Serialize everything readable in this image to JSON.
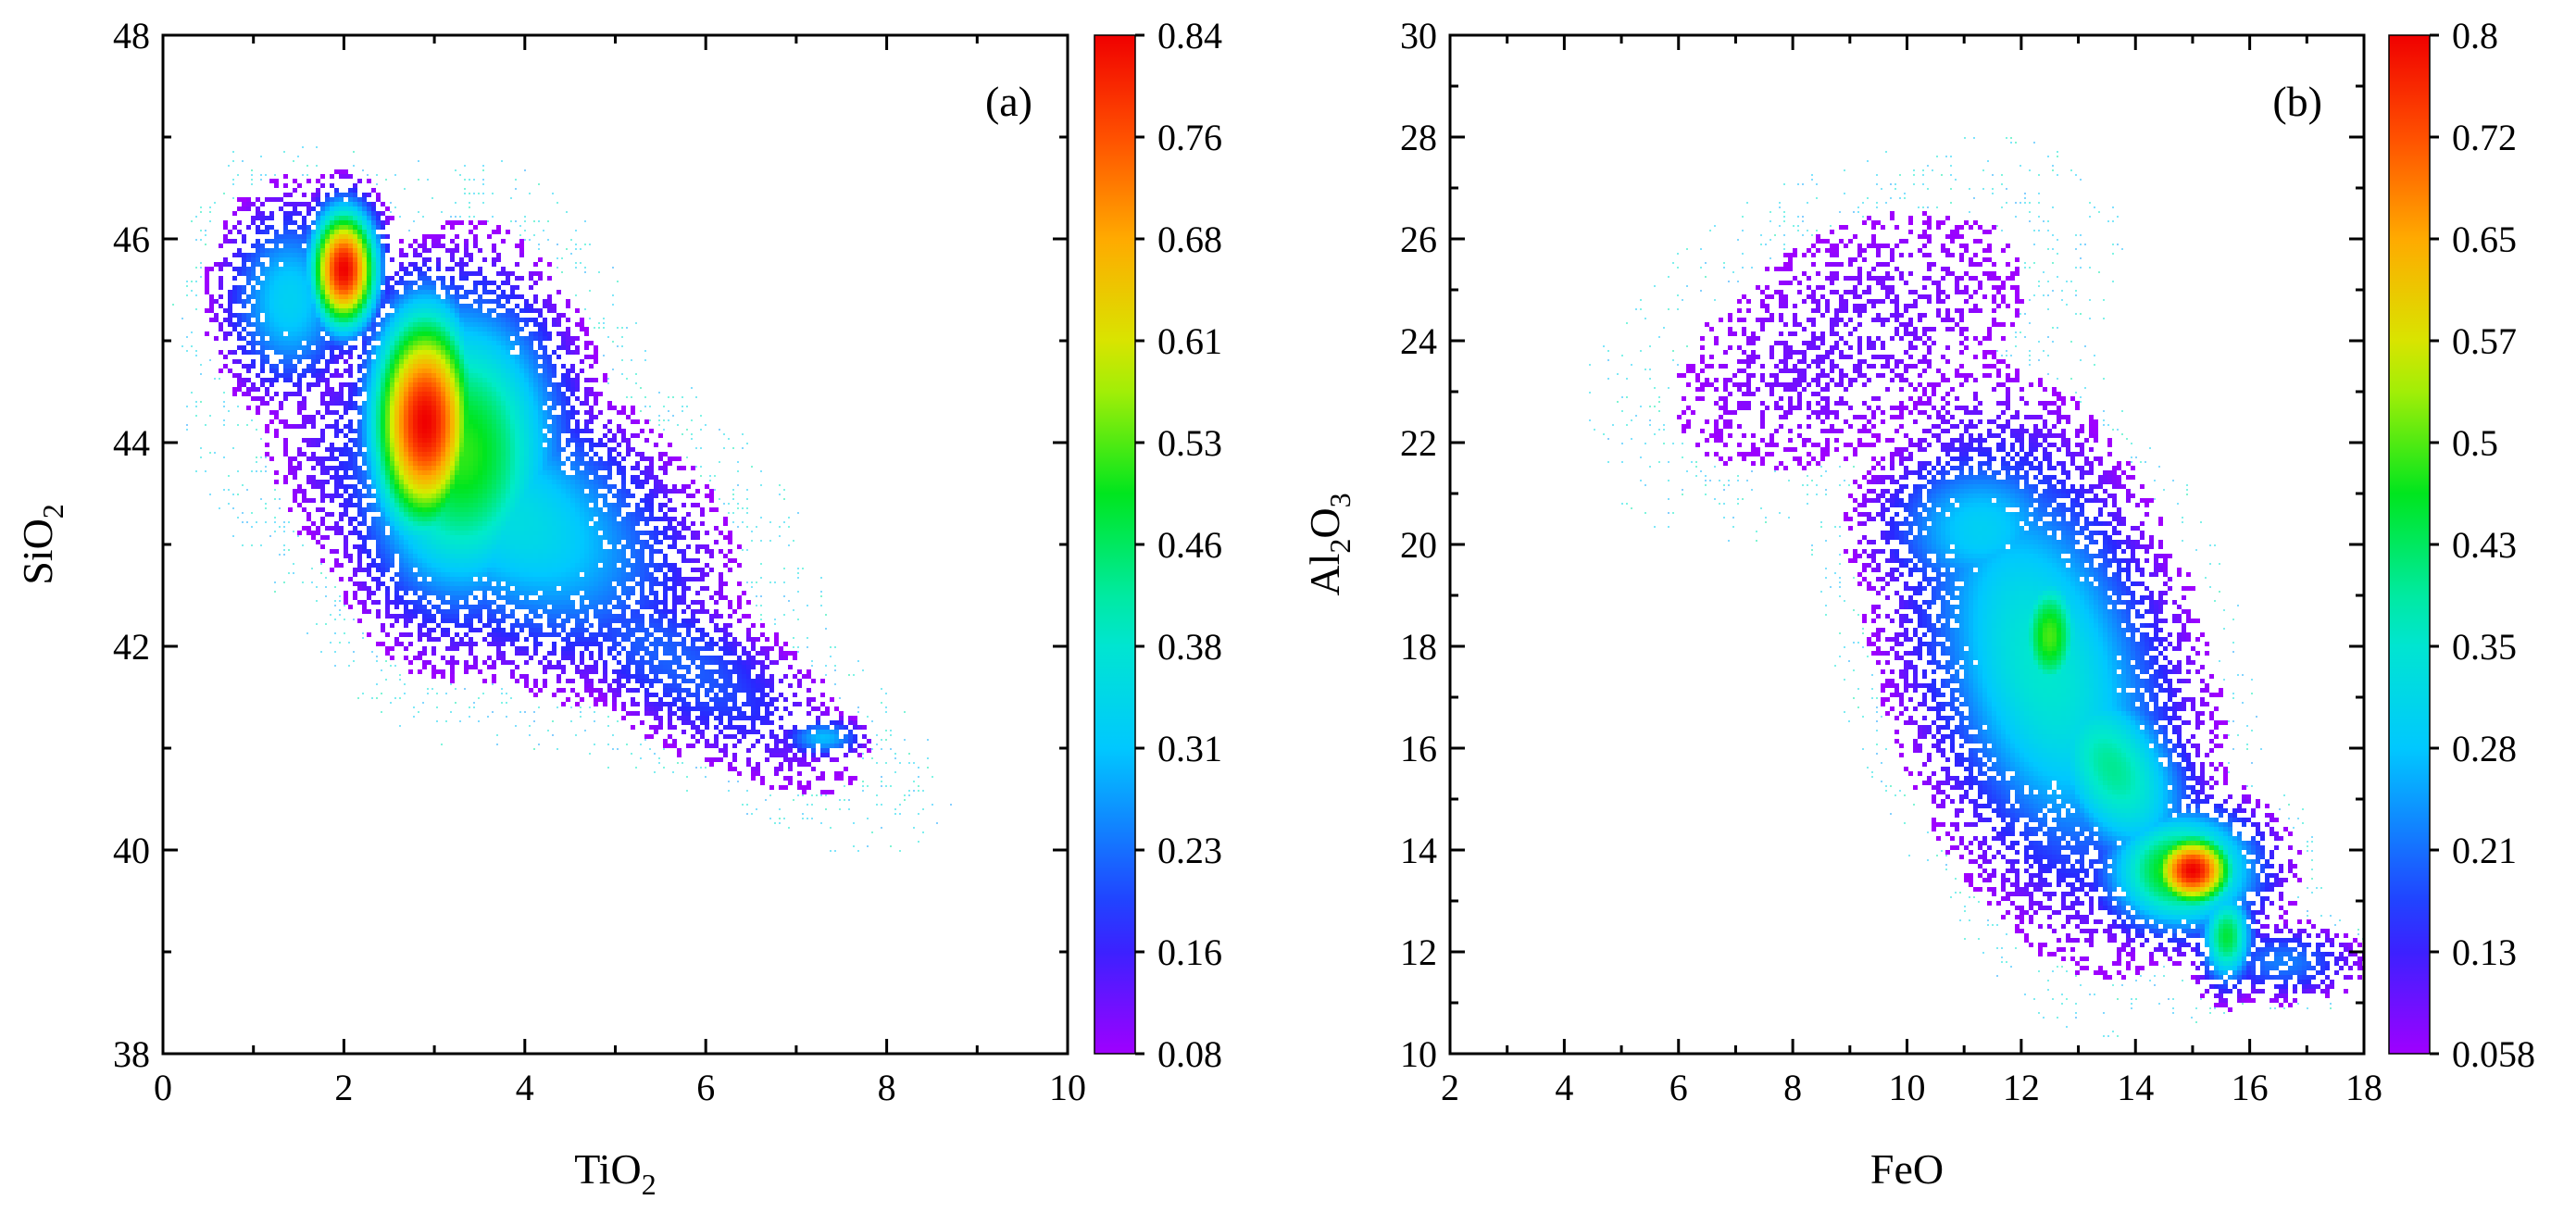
{
  "chart_data": [
    {
      "type": "heatmap",
      "panel_label": "(a)",
      "xlabel": {
        "base": "TiO",
        "sub": "2",
        "tail": ""
      },
      "ylabel": {
        "base": "SiO",
        "sub": "2",
        "tail": ""
      },
      "xlim": [
        0,
        10
      ],
      "ylim": [
        38,
        48
      ],
      "xticks": [
        0,
        2,
        4,
        6,
        8,
        10
      ],
      "xtick_labels": [
        "0",
        "2",
        "4",
        "6",
        "8",
        "10"
      ],
      "yticks": [
        38,
        40,
        42,
        44,
        46,
        48
      ],
      "ytick_labels": [
        "38",
        "40",
        "42",
        "44",
        "46",
        "48"
      ],
      "grid": false,
      "colorbar": {
        "min": 0.08,
        "max": 0.84,
        "ticks": [
          "0.08",
          "0.16",
          "0.23",
          "0.31",
          "0.38",
          "0.46",
          "0.53",
          "0.61",
          "0.68",
          "0.76",
          "0.84"
        ]
      },
      "density_clusters": [
        {
          "x": 2.0,
          "y": 45.7,
          "sx": 0.28,
          "sy": 0.45,
          "peak": 0.84,
          "rotation": 0
        },
        {
          "x": 2.9,
          "y": 44.2,
          "sx": 0.45,
          "sy": 0.85,
          "peak": 0.84,
          "rotation": 0
        },
        {
          "x": 3.3,
          "y": 43.9,
          "sx": 0.85,
          "sy": 1.15,
          "peak": 0.52,
          "rotation": 0
        },
        {
          "x": 3.8,
          "y": 43.3,
          "sx": 1.6,
          "sy": 0.9,
          "peak": 0.36,
          "rotation": -0.45
        },
        {
          "x": 1.4,
          "y": 45.4,
          "sx": 0.55,
          "sy": 0.7,
          "peak": 0.33,
          "rotation": 0
        },
        {
          "x": 5.6,
          "y": 41.9,
          "sx": 1.6,
          "sy": 0.55,
          "peak": 0.22,
          "rotation": -0.5
        },
        {
          "x": 7.3,
          "y": 41.1,
          "sx": 0.35,
          "sy": 0.15,
          "peak": 0.3,
          "rotation": 0
        }
      ]
    },
    {
      "type": "heatmap",
      "panel_label": "(b)",
      "xlabel": {
        "base": "FeO",
        "sub": "",
        "tail": ""
      },
      "ylabel": {
        "base": "Al",
        "sub": "2",
        "tail": "O",
        "sub2": "3"
      },
      "xlim": [
        2,
        18
      ],
      "ylim": [
        10,
        30
      ],
      "xticks": [
        2,
        4,
        6,
        8,
        10,
        12,
        14,
        16,
        18
      ],
      "xtick_labels": [
        "2",
        "4",
        "6",
        "8",
        "10",
        "12",
        "14",
        "16",
        "18"
      ],
      "yticks": [
        10,
        12,
        14,
        16,
        18,
        20,
        22,
        24,
        26,
        28,
        30
      ],
      "ytick_labels": [
        "10",
        "12",
        "14",
        "16",
        "18",
        "20",
        "22",
        "24",
        "26",
        "28",
        "30"
      ],
      "grid": false,
      "colorbar": {
        "min": 0.058,
        "max": 0.8,
        "ticks": [
          "0.058",
          "0.13",
          "0.21",
          "0.28",
          "0.35",
          "0.43",
          "0.5",
          "0.57",
          "0.65",
          "0.72",
          "0.8"
        ]
      },
      "density_clusters": [
        {
          "x": 15.0,
          "y": 13.6,
          "sx": 0.55,
          "sy": 0.55,
          "peak": 0.8,
          "rotation": 0
        },
        {
          "x": 14.8,
          "y": 13.6,
          "sx": 1.0,
          "sy": 0.9,
          "peak": 0.5,
          "rotation": 0
        },
        {
          "x": 15.6,
          "y": 12.3,
          "sx": 0.35,
          "sy": 0.7,
          "peak": 0.45,
          "rotation": 0
        },
        {
          "x": 12.5,
          "y": 18.2,
          "sx": 0.45,
          "sy": 1.0,
          "peak": 0.5,
          "rotation": 0
        },
        {
          "x": 12.4,
          "y": 17.6,
          "sx": 1.5,
          "sy": 3.2,
          "peak": 0.36,
          "rotation": 0.25
        },
        {
          "x": 13.6,
          "y": 15.6,
          "sx": 0.9,
          "sy": 1.6,
          "peak": 0.4,
          "rotation": 0.4
        },
        {
          "x": 11.3,
          "y": 20.3,
          "sx": 1.3,
          "sy": 1.2,
          "peak": 0.3,
          "rotation": 0
        },
        {
          "x": 9.0,
          "y": 24.0,
          "sx": 3.0,
          "sy": 1.8,
          "peak": 0.1,
          "rotation": 0.6
        },
        {
          "x": 16.6,
          "y": 11.8,
          "sx": 0.9,
          "sy": 0.5,
          "peak": 0.22,
          "rotation": 0
        }
      ]
    }
  ]
}
